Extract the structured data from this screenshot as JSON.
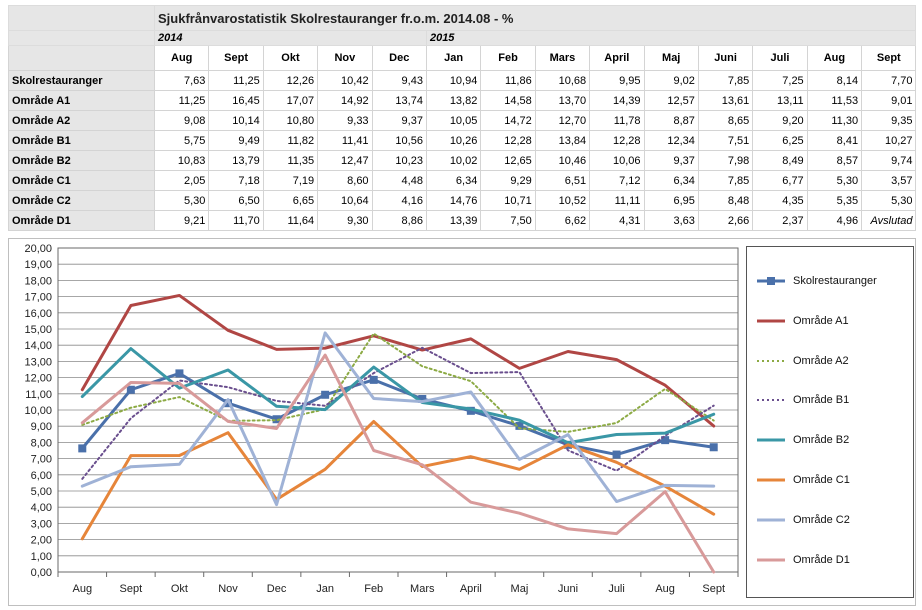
{
  "title": "Sjukfrånvarostatistik Skolrestauranger fr.o.m. 2014.08 - %",
  "year_2014": "2014",
  "year_2015": "2015",
  "months": [
    "Aug",
    "Sept",
    "Okt",
    "Nov",
    "Dec",
    "Jan",
    "Feb",
    "Mars",
    "April",
    "Maj",
    "Juni",
    "Juli",
    "Aug",
    "Sept"
  ],
  "rows": [
    {
      "label": "Skolrestauranger",
      "values": [
        "7,63",
        "11,25",
        "12,26",
        "10,42",
        "9,43",
        "10,94",
        "11,86",
        "10,68",
        "9,95",
        "9,02",
        "7,85",
        "7,25",
        "8,14",
        "7,70"
      ]
    },
    {
      "label": "Område A1",
      "values": [
        "11,25",
        "16,45",
        "17,07",
        "14,92",
        "13,74",
        "13,82",
        "14,58",
        "13,70",
        "14,39",
        "12,57",
        "13,61",
        "13,11",
        "11,53",
        "9,01"
      ]
    },
    {
      "label": "Område A2",
      "values": [
        "9,08",
        "10,14",
        "10,80",
        "9,33",
        "9,37",
        "10,05",
        "14,72",
        "12,70",
        "11,78",
        "8,87",
        "8,65",
        "9,20",
        "11,30",
        "9,35"
      ]
    },
    {
      "label": "Område B1",
      "values": [
        "5,75",
        "9,49",
        "11,82",
        "11,41",
        "10,56",
        "10,26",
        "12,28",
        "13,84",
        "12,28",
        "12,34",
        "7,51",
        "6,25",
        "8,41",
        "10,27"
      ]
    },
    {
      "label": "Område B2",
      "values": [
        "10,83",
        "13,79",
        "11,35",
        "12,47",
        "10,23",
        "10,02",
        "12,65",
        "10,46",
        "10,06",
        "9,37",
        "7,98",
        "8,49",
        "8,57",
        "9,74"
      ]
    },
    {
      "label": "Område C1",
      "values": [
        "2,05",
        "7,18",
        "7,19",
        "8,60",
        "4,48",
        "6,34",
        "9,29",
        "6,51",
        "7,12",
        "6,34",
        "7,85",
        "6,77",
        "5,30",
        "3,57"
      ]
    },
    {
      "label": "Område C2",
      "values": [
        "5,30",
        "6,50",
        "6,65",
        "10,64",
        "4,16",
        "14,76",
        "10,71",
        "10,52",
        "11,11",
        "6,95",
        "8,48",
        "4,35",
        "5,35",
        "5,30"
      ]
    },
    {
      "label": "Område D1",
      "values": [
        "9,21",
        "11,70",
        "11,64",
        "9,30",
        "8,86",
        "13,39",
        "7,50",
        "6,62",
        "4,31",
        "3,63",
        "2,66",
        "2,37",
        "4,96",
        "Avslutad"
      ]
    }
  ],
  "chart_data": {
    "type": "line",
    "categories": [
      "Aug",
      "Sept",
      "Okt",
      "Nov",
      "Dec",
      "Jan",
      "Feb",
      "Mars",
      "April",
      "Maj",
      "Juni",
      "Juli",
      "Aug",
      "Sept"
    ],
    "ylim": [
      0,
      20
    ],
    "ytick_step": 1,
    "yticks": [
      "0,00",
      "1,00",
      "2,00",
      "3,00",
      "4,00",
      "5,00",
      "6,00",
      "7,00",
      "8,00",
      "9,00",
      "10,00",
      "11,00",
      "12,00",
      "13,00",
      "14,00",
      "15,00",
      "16,00",
      "17,00",
      "18,00",
      "19,00",
      "20,00"
    ],
    "grid": true,
    "legend_position": "right",
    "series": [
      {
        "name": "Skolrestauranger",
        "color": "#4a70aa",
        "style": "solid-marker",
        "values": [
          7.63,
          11.25,
          12.26,
          10.42,
          9.43,
          10.94,
          11.86,
          10.68,
          9.95,
          9.02,
          7.85,
          7.25,
          8.14,
          7.7
        ]
      },
      {
        "name": "Område A1",
        "color": "#b04644",
        "style": "solid",
        "values": [
          11.25,
          16.45,
          17.07,
          14.92,
          13.74,
          13.82,
          14.58,
          13.7,
          14.39,
          12.57,
          13.61,
          13.11,
          11.53,
          9.01
        ]
      },
      {
        "name": "Område A2",
        "color": "#8caa44",
        "style": "dotted",
        "values": [
          9.08,
          10.14,
          10.8,
          9.33,
          9.37,
          10.05,
          14.72,
          12.7,
          11.78,
          8.87,
          8.65,
          9.2,
          11.3,
          9.35
        ]
      },
      {
        "name": "Område B1",
        "color": "#6a4f8e",
        "style": "dotted",
        "values": [
          5.75,
          9.49,
          11.82,
          11.41,
          10.56,
          10.26,
          12.28,
          13.84,
          12.28,
          12.34,
          7.51,
          6.25,
          8.41,
          10.27
        ]
      },
      {
        "name": "Område B2",
        "color": "#3a97a6",
        "style": "solid",
        "values": [
          10.83,
          13.79,
          11.35,
          12.47,
          10.23,
          10.02,
          12.65,
          10.46,
          10.06,
          9.37,
          7.98,
          8.49,
          8.57,
          9.74
        ]
      },
      {
        "name": "Område C1",
        "color": "#e6853a",
        "style": "solid",
        "values": [
          2.05,
          7.18,
          7.19,
          8.6,
          4.48,
          6.34,
          9.29,
          6.51,
          7.12,
          6.34,
          7.85,
          6.77,
          5.3,
          3.57
        ]
      },
      {
        "name": "Område C2",
        "color": "#9fb2d6",
        "style": "solid",
        "values": [
          5.3,
          6.5,
          6.65,
          10.64,
          4.16,
          14.76,
          10.71,
          10.52,
          11.11,
          6.95,
          8.48,
          4.35,
          5.35,
          5.3
        ]
      },
      {
        "name": "Område D1",
        "color": "#d89a9a",
        "style": "solid",
        "values": [
          9.21,
          11.7,
          11.64,
          9.3,
          8.86,
          13.39,
          7.5,
          6.62,
          4.31,
          3.63,
          2.66,
          2.37,
          4.96,
          0
        ]
      }
    ]
  }
}
